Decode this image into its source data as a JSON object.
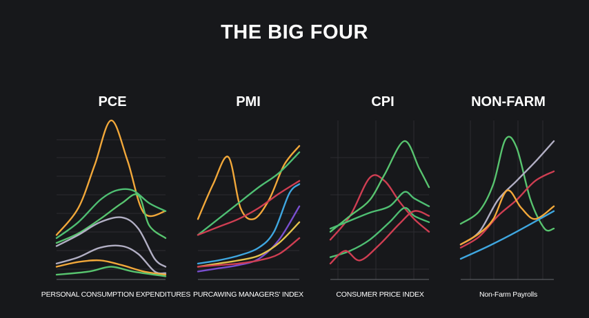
{
  "title": "THE BIG FOUR",
  "colors": {
    "background": "#17181b",
    "orange": "#f2a83a",
    "green": "#58c46f",
    "light_green": "#4fbf73",
    "red": "#cf3e52",
    "blue": "#3fa7e0",
    "purple": "#7a4fd0",
    "lavender": "#b2afc4",
    "yellow": "#e3c34d"
  },
  "chart_data": [
    {
      "type": "line",
      "title": "PCE",
      "caption": "PERSONAL CONSUMPTION EXPENDITURES",
      "xlim": [
        0,
        10
      ],
      "ylim": [
        0,
        10
      ],
      "series": [
        {
          "color": "#f2a83a",
          "points": [
            [
              0,
              2.8
            ],
            [
              2,
              4.5
            ],
            [
              3.5,
              7.2
            ],
            [
              5,
              10
            ],
            [
              6.5,
              7.5
            ],
            [
              8,
              4.2
            ],
            [
              10,
              4.3
            ]
          ]
        },
        {
          "color": "#4fbf73",
          "points": [
            [
              0,
              2.6
            ],
            [
              2,
              3.6
            ],
            [
              4,
              5
            ],
            [
              5.5,
              5.6
            ],
            [
              7,
              5.6
            ],
            [
              8.5,
              4.8
            ],
            [
              10,
              4.3
            ]
          ]
        },
        {
          "color": "#58c46f",
          "points": [
            [
              0,
              2.3
            ],
            [
              2,
              2.9
            ],
            [
              4,
              3.8
            ],
            [
              6,
              4.8
            ],
            [
              7.5,
              5.3
            ],
            [
              8.5,
              3.4
            ],
            [
              10,
              2.6
            ]
          ]
        },
        {
          "color": "#b2afc4",
          "points": [
            [
              0,
              2.1
            ],
            [
              2,
              2.8
            ],
            [
              4,
              3.6
            ],
            [
              6,
              3.9
            ],
            [
              7.5,
              3.2
            ],
            [
              9,
              1.3
            ],
            [
              10,
              0.8
            ]
          ]
        },
        {
          "color": "#b2afc4",
          "points": [
            [
              0,
              1
            ],
            [
              2,
              1.4
            ],
            [
              4,
              2
            ],
            [
              6,
              2.1
            ],
            [
              7.5,
              1.6
            ],
            [
              9,
              0.5
            ],
            [
              10,
              0.4
            ]
          ]
        },
        {
          "color": "#f2a83a",
          "points": [
            [
              0,
              0.8
            ],
            [
              2,
              1.1
            ],
            [
              4,
              1.2
            ],
            [
              6,
              0.9
            ],
            [
              8,
              0.5
            ],
            [
              10,
              0.3
            ]
          ]
        },
        {
          "color": "#58c46f",
          "points": [
            [
              0,
              0.3
            ],
            [
              3,
              0.5
            ],
            [
              5,
              0.8
            ],
            [
              7,
              0.5
            ],
            [
              10,
              0.2
            ]
          ]
        }
      ]
    },
    {
      "type": "line",
      "title": "PMI",
      "caption": "PURCAWING MANAGERS' INDEX",
      "xlim": [
        0,
        10
      ],
      "ylim": [
        0,
        10
      ],
      "series": [
        {
          "color": "#f2a83a",
          "points": [
            [
              0,
              3.8
            ],
            [
              1.5,
              6
            ],
            [
              3,
              7.7
            ],
            [
              4.2,
              4.5
            ],
            [
              5.5,
              3.8
            ],
            [
              7,
              5
            ],
            [
              8.5,
              7.2
            ],
            [
              10,
              8.4
            ]
          ]
        },
        {
          "color": "#4fbf73",
          "points": [
            [
              0,
              2.8
            ],
            [
              2,
              3.8
            ],
            [
              4,
              4.8
            ],
            [
              6,
              5.8
            ],
            [
              8,
              6.7
            ],
            [
              10,
              8
            ]
          ]
        },
        {
          "color": "#cf3e52",
          "points": [
            [
              0,
              2.8
            ],
            [
              2,
              3.3
            ],
            [
              4,
              3.8
            ],
            [
              6,
              4.5
            ],
            [
              8,
              5.4
            ],
            [
              10,
              6.2
            ]
          ]
        },
        {
          "color": "#3fa7e0",
          "points": [
            [
              0,
              1
            ],
            [
              2,
              1.2
            ],
            [
              4,
              1.5
            ],
            [
              6,
              2
            ],
            [
              7.5,
              3
            ],
            [
              9,
              5.4
            ],
            [
              10,
              6
            ]
          ]
        },
        {
          "color": "#7a4fd0",
          "points": [
            [
              0,
              0.5
            ],
            [
              2,
              0.7
            ],
            [
              4,
              0.9
            ],
            [
              6,
              1.3
            ],
            [
              8,
              2.5
            ],
            [
              10,
              4.6
            ]
          ]
        },
        {
          "color": "#e3c34d",
          "points": [
            [
              0,
              0.8
            ],
            [
              2,
              1
            ],
            [
              4,
              1.2
            ],
            [
              6,
              1.5
            ],
            [
              8,
              2.3
            ],
            [
              10,
              3.6
            ]
          ]
        },
        {
          "color": "#cf3e52",
          "points": [
            [
              0,
              0.8
            ],
            [
              2,
              0.9
            ],
            [
              4,
              1
            ],
            [
              6,
              1.2
            ],
            [
              8,
              1.6
            ],
            [
              10,
              2.6
            ]
          ]
        }
      ]
    },
    {
      "type": "line",
      "title": "CPI",
      "caption": "CONSUMER PRICE INDEX",
      "xlim": [
        0,
        10
      ],
      "ylim": [
        0,
        10
      ],
      "series": [
        {
          "color": "#cf3e52",
          "points": [
            [
              0,
              2.5
            ],
            [
              2,
              4
            ],
            [
              4,
              6.4
            ],
            [
              5.5,
              6.2
            ],
            [
              7,
              4.9
            ],
            [
              8.5,
              3.8
            ],
            [
              10,
              3
            ]
          ]
        },
        {
          "color": "#58c46f",
          "points": [
            [
              0,
              3
            ],
            [
              2,
              4
            ],
            [
              4,
              5
            ],
            [
              5.5,
              6.6
            ],
            [
              7.5,
              8.7
            ],
            [
              9,
              7
            ],
            [
              10,
              5.8
            ]
          ]
        },
        {
          "color": "#4fbf73",
          "points": [
            [
              0,
              3.2
            ],
            [
              2,
              3.7
            ],
            [
              4,
              4.2
            ],
            [
              6,
              4.6
            ],
            [
              7.5,
              5.5
            ],
            [
              8.5,
              5.1
            ],
            [
              10,
              4.6
            ]
          ]
        },
        {
          "color": "#4fbf73",
          "points": [
            [
              0,
              1.4
            ],
            [
              2,
              1.8
            ],
            [
              4,
              2.5
            ],
            [
              6,
              3.6
            ],
            [
              7.5,
              4.5
            ],
            [
              8.5,
              4
            ],
            [
              10,
              3.6
            ]
          ]
        },
        {
          "color": "#cf3e52",
          "points": [
            [
              0,
              1
            ],
            [
              1.5,
              1.8
            ],
            [
              3,
              1.2
            ],
            [
              5,
              2.2
            ],
            [
              7,
              3.5
            ],
            [
              8.5,
              4.3
            ],
            [
              10,
              4
            ]
          ]
        }
      ]
    },
    {
      "type": "line",
      "title": "NON-FARM",
      "caption": "Non-farm payrolls",
      "xlim": [
        0,
        10
      ],
      "ylim": [
        0,
        10
      ],
      "series": [
        {
          "color": "#58c46f",
          "points": [
            [
              0,
              3.5
            ],
            [
              2,
              4.3
            ],
            [
              3.5,
              6
            ],
            [
              4.8,
              8.8
            ],
            [
              6,
              8.3
            ],
            [
              7.5,
              5
            ],
            [
              9,
              3.2
            ],
            [
              10,
              3.2
            ]
          ]
        },
        {
          "color": "#b2afc4",
          "points": [
            [
              0,
              2.2
            ],
            [
              2,
              3
            ],
            [
              4,
              5
            ],
            [
              6,
              6.2
            ],
            [
              8,
              7.4
            ],
            [
              10,
              8.7
            ]
          ]
        },
        {
          "color": "#cf3e52",
          "points": [
            [
              0,
              2
            ],
            [
              2,
              2.7
            ],
            [
              4,
              4
            ],
            [
              6,
              5
            ],
            [
              8,
              6.2
            ],
            [
              10,
              6.8
            ]
          ]
        },
        {
          "color": "#f2a83a",
          "points": [
            [
              0,
              2.2
            ],
            [
              2,
              2.9
            ],
            [
              3.5,
              3.8
            ],
            [
              5,
              5.6
            ],
            [
              6.5,
              4.5
            ],
            [
              8,
              3.8
            ],
            [
              10,
              4.6
            ]
          ]
        },
        {
          "color": "#3fa7e0",
          "points": [
            [
              0,
              1.3
            ],
            [
              3,
              2.1
            ],
            [
              6,
              3
            ],
            [
              10,
              4.3
            ]
          ]
        }
      ]
    }
  ]
}
